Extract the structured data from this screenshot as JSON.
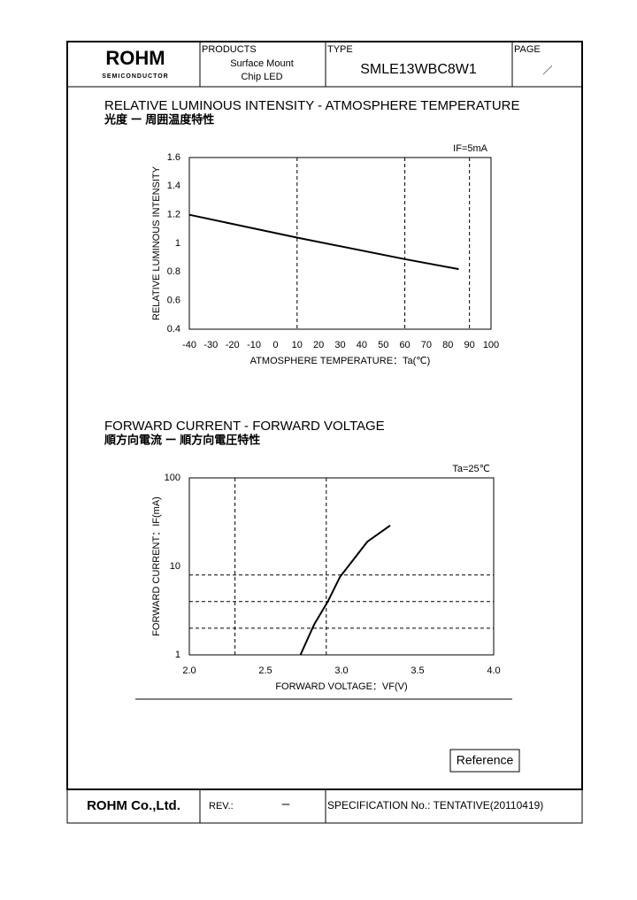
{
  "header": {
    "logo": "ROHM",
    "logo_sub": "SEMICONDUCTOR",
    "products_label": "PRODUCTS",
    "products_line1": "Surface Mount",
    "products_line2": "Chip LED",
    "type_label": "TYPE",
    "type_value": "SMLE13WBC8W1",
    "page_label": "PAGE",
    "page_value": "／"
  },
  "chart_data": [
    {
      "type": "line",
      "title": "RELATIVE LUMINOUS INTENSITY - ATMOSPHERE TEMPERATURE",
      "subtitle": "光度 ー 周囲温度特性",
      "annotation": "IF=5mA",
      "x_label": "ATMOSPHERE TEMPERATURE：Ta(℃)",
      "y_label": "RELATIVE LUMINOUS INTENSITY",
      "x": [
        -40,
        10,
        60,
        85
      ],
      "values": [
        1.2,
        1.04,
        0.89,
        0.82
      ],
      "color": "#000000",
      "xlim": [
        -40,
        100
      ],
      "xticks": [
        -40,
        -30,
        -20,
        -10,
        0,
        10,
        20,
        30,
        40,
        50,
        60,
        70,
        80,
        90,
        100
      ],
      "ylim": [
        0.4,
        1.6
      ],
      "yticks": [
        0.4,
        0.6,
        0.8,
        1,
        1.2,
        1.4,
        1.6
      ],
      "xgrid": [
        10,
        60,
        90
      ],
      "ygrid": [],
      "log_y": false
    },
    {
      "type": "line",
      "title": "FORWARD CURRENT - FORWARD VOLTAGE",
      "subtitle": "順方向電流 ー 順方向電圧特性",
      "annotation": "Ta=25℃",
      "x_label": "FORWARD VOLTAGE：VF(V)",
      "y_label": "FORWARD CURRENT：IF(mA)",
      "x": [
        2.73,
        2.82,
        2.91,
        2.99,
        3.17,
        3.32
      ],
      "values": [
        1,
        2.2,
        4,
        7.6,
        19,
        29
      ],
      "color": "#000000",
      "xlim": [
        2,
        4
      ],
      "xticks": [
        {
          "value": 2,
          "label": "2.0"
        },
        2.5,
        {
          "value": 3,
          "label": "3.0"
        },
        3.5,
        {
          "value": 4,
          "label": "4.0"
        }
      ],
      "ylim": [
        1,
        100
      ],
      "yticks": [
        1,
        10,
        100
      ],
      "xgrid": [
        2.3,
        2.9
      ],
      "ygrid": [
        2,
        4,
        8
      ],
      "log_y": true
    }
  ],
  "reference": "Reference",
  "footer": {
    "company": "ROHM Co.,Ltd.",
    "rev_label": "REV.:",
    "rev_value": "ー",
    "spec": "SPECIFICATION No.: TENTATIVE(20110419)"
  }
}
